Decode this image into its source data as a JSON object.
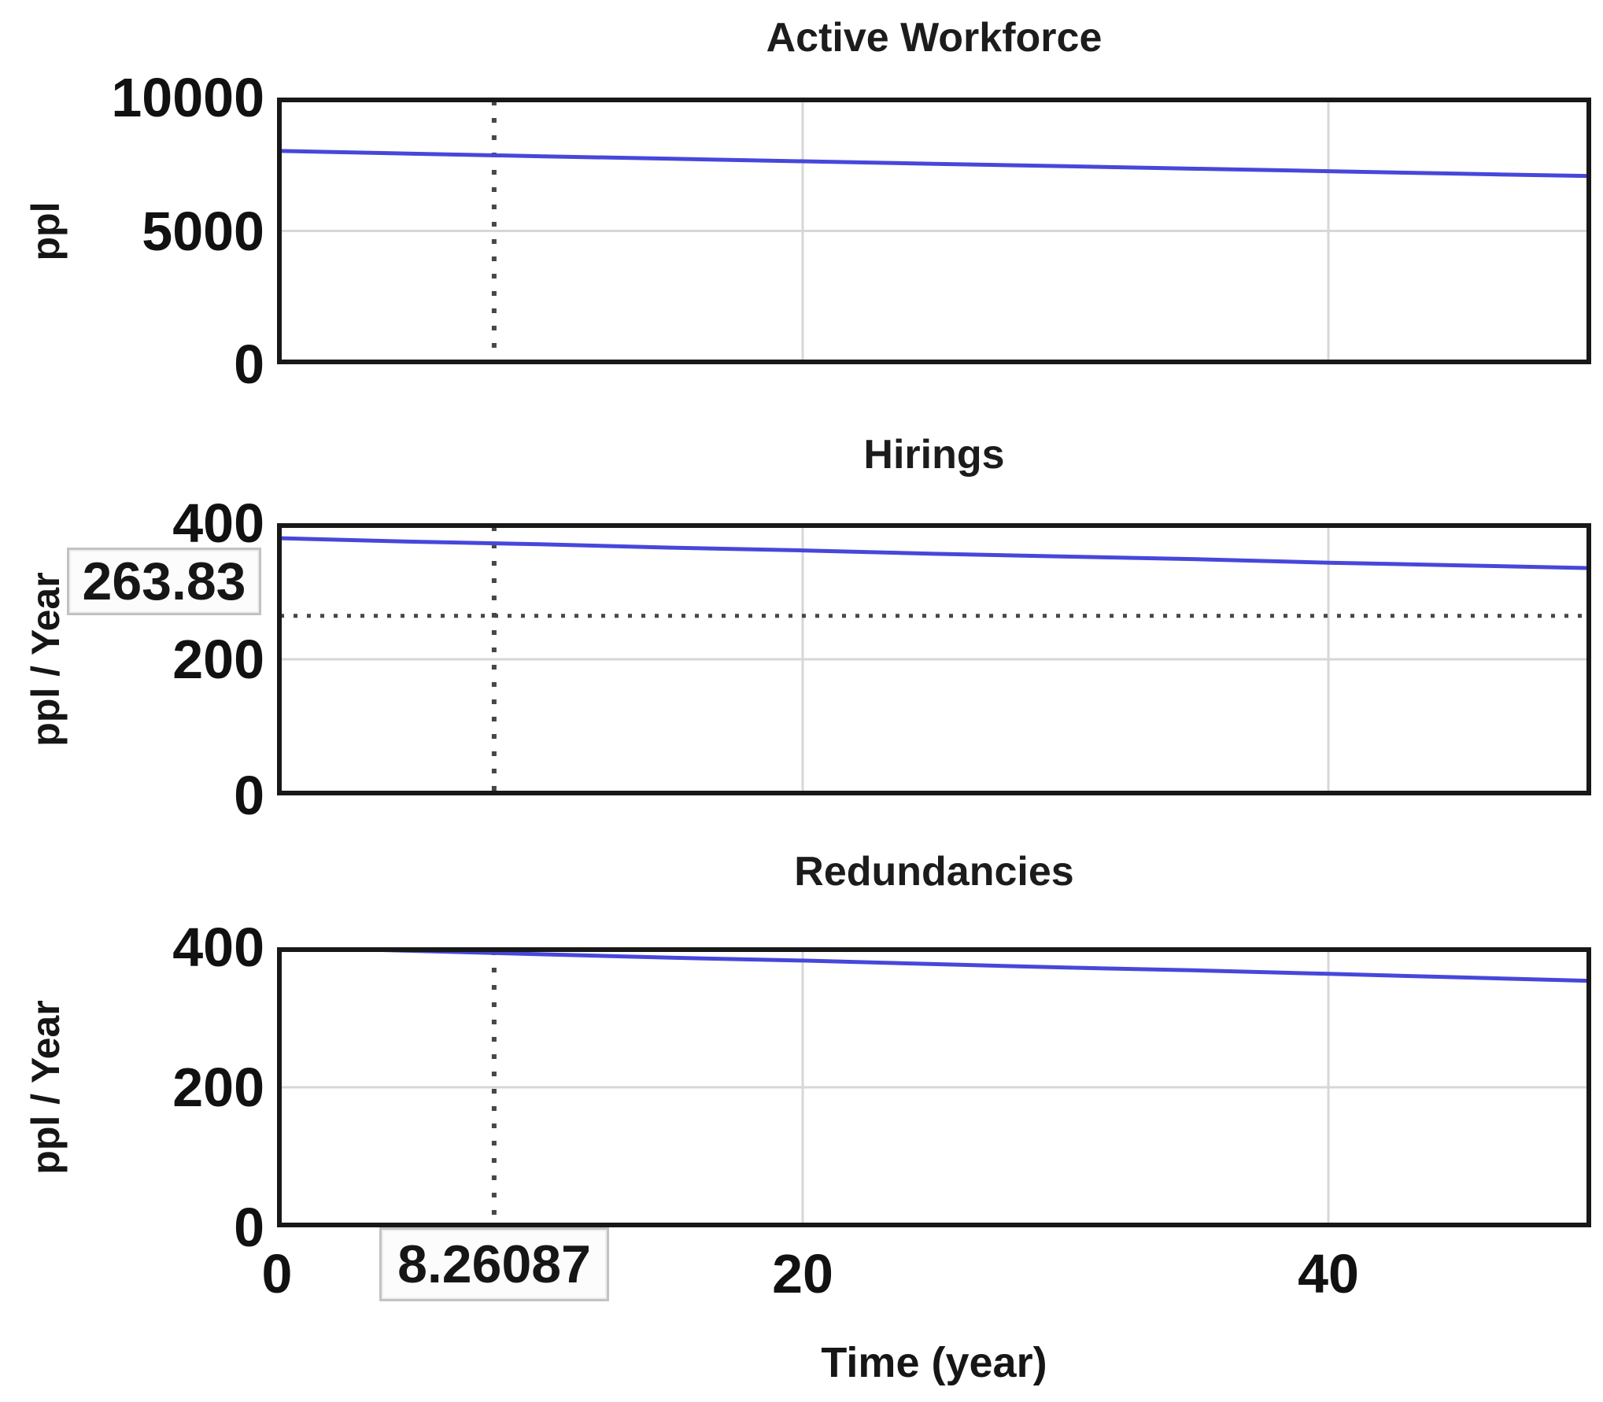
{
  "panel": {
    "background": "#ffffff",
    "description": "Stacked simulation output strip graphs with crosshair cursor"
  },
  "colors": {
    "series_line": "#4747db",
    "gridline": "#d7d7d7",
    "frame": "#181818",
    "crosshair": "#474747",
    "text": "#1a1a1a",
    "cursor_box_border": "#c2c2c2",
    "cursor_box_bg": "#fcfcfc"
  },
  "x_axis": {
    "label": "Time (year)",
    "range": [
      0,
      50
    ],
    "tick_values": [
      0,
      20,
      40
    ],
    "tick_labels": [
      "0",
      "20",
      "40"
    ],
    "cursor_value": 8.26087,
    "cursor_value_label": "8.26087"
  },
  "chart_data": [
    {
      "type": "line",
      "title": "Active Workforce",
      "ylabel": "ppl",
      "ylim": [
        0,
        10000
      ],
      "yticks": [
        {
          "label": "10000",
          "value": 10000
        },
        {
          "label": "5000",
          "value": 5000
        },
        {
          "label": "0",
          "value": 0
        }
      ],
      "x": [
        0,
        5,
        10,
        15,
        20,
        25,
        30,
        35,
        40,
        45,
        50
      ],
      "values": [
        8000,
        7900,
        7800,
        7705,
        7610,
        7515,
        7425,
        7330,
        7240,
        7145,
        7055
      ],
      "grid": true,
      "legend": "none"
    },
    {
      "type": "line",
      "title": "Hirings",
      "ylabel": "ppl / Year",
      "ylim": [
        0,
        400
      ],
      "yticks": [
        {
          "label": "400",
          "value": 400
        },
        {
          "label": "200",
          "value": 200
        },
        {
          "label": "0",
          "value": 0
        }
      ],
      "x": [
        0,
        5,
        10,
        15,
        20,
        25,
        30,
        35,
        40,
        45,
        50
      ],
      "values": [
        378,
        373,
        369,
        364,
        360,
        355,
        351,
        347,
        342,
        338,
        334
      ],
      "grid": true,
      "legend": "none",
      "crosshair_y": {
        "value": 263.83,
        "label": "263.83"
      }
    },
    {
      "type": "line",
      "title": "Redundancies",
      "ylabel": "ppl / Year",
      "ylim": [
        0,
        400
      ],
      "yticks": [
        {
          "label": "400",
          "value": 400
        },
        {
          "label": "200",
          "value": 200
        },
        {
          "label": "0",
          "value": 0
        }
      ],
      "x": [
        0,
        5,
        10,
        15,
        20,
        25,
        30,
        35,
        40,
        45,
        50
      ],
      "values": [
        400,
        395,
        390,
        385,
        381,
        376,
        371,
        367,
        362,
        357,
        352
      ],
      "grid": true,
      "legend": "none"
    }
  ]
}
